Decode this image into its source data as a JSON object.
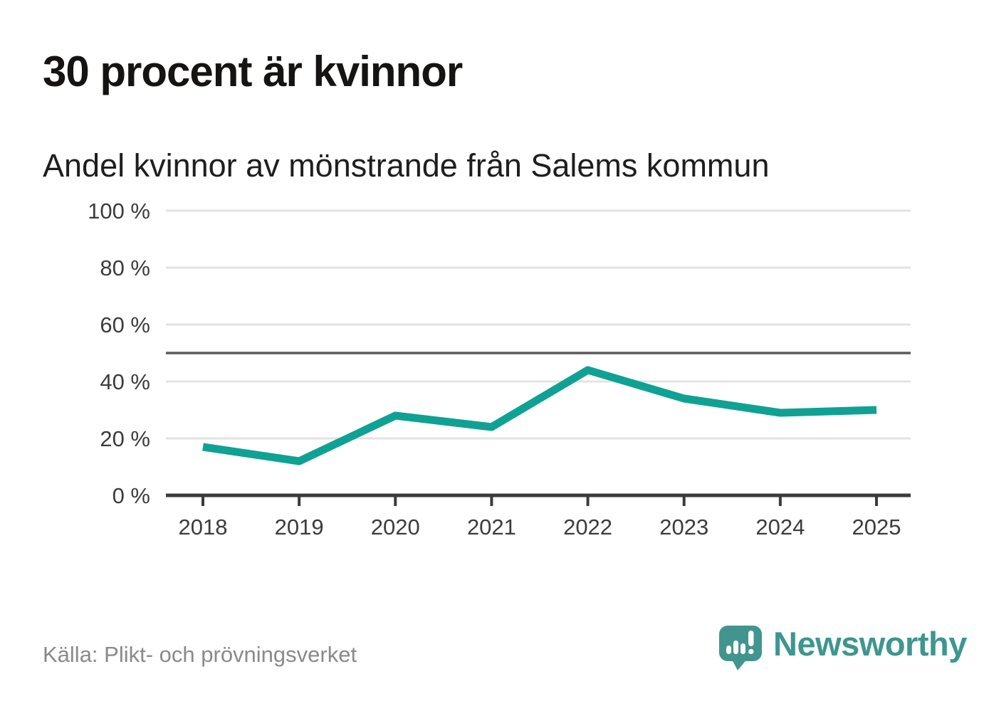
{
  "header": {
    "title": "30 procent är kvinnor",
    "subtitle": "Andel kvinnor av mönstrande från Salems kommun"
  },
  "chart_data": {
    "type": "line",
    "title": "30 procent är kvinnor",
    "subtitle": "Andel kvinnor av mönstrande från Salems kommun",
    "categories": [
      2018,
      2019,
      2020,
      2021,
      2022,
      2023,
      2024,
      2025
    ],
    "series": [
      {
        "name": "Andel kvinnor av mönstrande",
        "values": [
          17,
          12,
          28,
          24,
          44,
          34,
          29,
          30
        ]
      }
    ],
    "xlabel": "",
    "ylabel": "",
    "ylim": [
      0,
      100
    ],
    "yticks": [
      0,
      20,
      40,
      60,
      80,
      100
    ],
    "ytick_suffix": " %",
    "reference_line": 50,
    "grid": true,
    "legend_position": "none",
    "line_color": "#0fa194"
  },
  "footer": {
    "source": "Källa: Plikt- och prövningsverket",
    "brand": "Newsworthy"
  },
  "colors": {
    "accent_line": "#0fa194",
    "logo_teal": "#42958f",
    "logo_text": "#3e968f",
    "grid": "#e3e3e3",
    "reference_line": "#5a5a5a",
    "axis": "#3b3b3b",
    "tick_label": "#3c3c3c",
    "title": "#161412",
    "subtitle": "#1e1e1e",
    "source": "#8a8a8a",
    "background": "#ffffff"
  }
}
